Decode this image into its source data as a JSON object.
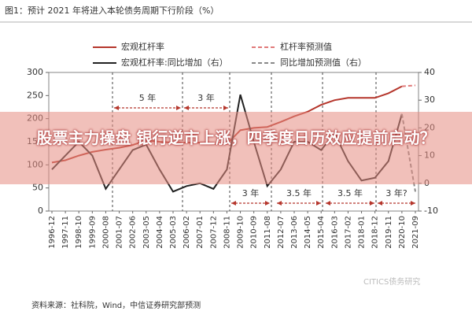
{
  "chart_data": {
    "type": "line",
    "title": "图1：预计 2021 年将进入本轮债务周期下行阶段（%）",
    "headline": "股票主力操盘 银行逆市上涨，四季度日历效应提前启动？",
    "source": "资料来源：社科院，Wind，中信证券研究部预测",
    "watermark": "CITICS债务研究",
    "annotations": [
      "5 年",
      "3 年",
      "3 年",
      "3.5 年",
      "3.5 年",
      "3 年?"
    ],
    "x": [
      "1996-12",
      "1997-11",
      "1998-10",
      "1999-09",
      "2000-08",
      "2001-07",
      "2002-06",
      "2003-05",
      "2004-04",
      "2005-03",
      "2006-02",
      "2007-01",
      "2007-12",
      "2008-11",
      "2009-10",
      "2010-09",
      "2011-08",
      "2012-07",
      "2013-06",
      "2014-05",
      "2015-04",
      "2016-03",
      "2017-02",
      "2018-01",
      "2018-12",
      "2019-11",
      "2020-10",
      "2021-09"
    ],
    "series": [
      {
        "name": "宏观杠杆率",
        "color": "#b5362c",
        "dash": false,
        "axis": "y",
        "values": [
          105,
          110,
          120,
          128,
          133,
          137,
          143,
          153,
          150,
          148,
          148,
          148,
          145,
          145,
          175,
          180,
          182,
          193,
          205,
          215,
          230,
          240,
          245,
          245,
          245,
          255,
          270,
          null
        ]
      },
      {
        "name": "杠杆率预测值",
        "color": "#e07a7a",
        "dash": true,
        "axis": "y",
        "values": [
          null,
          null,
          null,
          null,
          null,
          null,
          null,
          null,
          null,
          null,
          null,
          null,
          null,
          null,
          null,
          null,
          null,
          null,
          null,
          null,
          null,
          null,
          null,
          null,
          null,
          null,
          270,
          272
        ]
      },
      {
        "name": "宏观杠杆率:同比增加（右）",
        "color": "#222222",
        "dash": false,
        "axis": "y2",
        "values": [
          5,
          10,
          15,
          10,
          -2,
          5,
          12,
          14,
          5,
          -3,
          -1,
          0,
          -2,
          5,
          32,
          15,
          -1,
          5,
          15,
          15,
          12,
          18,
          8,
          1,
          2,
          8,
          25,
          null
        ]
      },
      {
        "name": "同比增加预测值（右）",
        "color": "#888888",
        "dash": true,
        "axis": "y2",
        "values": [
          null,
          null,
          null,
          null,
          null,
          null,
          null,
          null,
          null,
          null,
          null,
          null,
          null,
          null,
          null,
          null,
          null,
          null,
          null,
          null,
          null,
          null,
          null,
          null,
          null,
          null,
          25,
          -3
        ]
      }
    ],
    "ylim": [
      0,
      300
    ],
    "yticks": [
      0,
      50,
      100,
      150,
      200,
      250,
      300
    ],
    "y2lim": [
      -10,
      40
    ],
    "y2ticks": [
      -10,
      0,
      10,
      20,
      30,
      40
    ]
  }
}
